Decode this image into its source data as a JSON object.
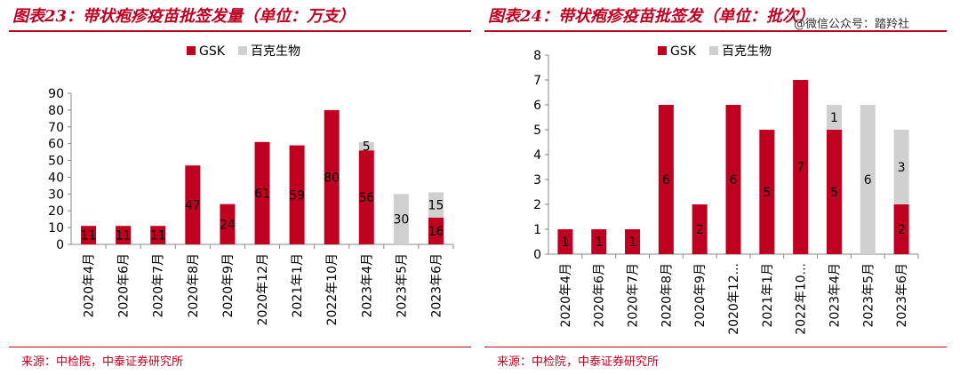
{
  "watermark": "@微信公众号：踏羚社",
  "colors": {
    "gsk": "#c00020",
    "baike": "#d0d0d0",
    "accent": "#c00020"
  },
  "chart_data": [
    {
      "type": "bar",
      "stacked": true,
      "title": "图表23：带状疱疹疫苗批签发量（单位：万支）",
      "source": "来源：中检院，中泰证券研究所",
      "legend_position": "top-center",
      "categories": [
        "2020年4月",
        "2020年6月",
        "2020年7月",
        "2020年8月",
        "2020年9月",
        "2020年12月",
        "2021年1月",
        "2022年10月",
        "2023年4月",
        "2023年5月",
        "2023年6月"
      ],
      "series": [
        {
          "name": "GSK",
          "values": [
            11,
            11,
            11,
            47,
            24,
            61,
            59,
            80,
            56,
            0,
            16
          ]
        },
        {
          "name": "百克生物",
          "values": [
            null,
            null,
            null,
            null,
            null,
            null,
            null,
            null,
            5,
            30,
            15
          ]
        }
      ],
      "ylim": [
        0,
        90
      ],
      "yticks": [
        0,
        10,
        20,
        30,
        40,
        50,
        60,
        70,
        80,
        90
      ]
    },
    {
      "type": "bar",
      "stacked": true,
      "title": "图表24：带状疱疹疫苗批签发（单位：批次）",
      "source": "来源：中检院，中泰证券研究所",
      "legend_position": "top-center",
      "categories": [
        "2020年4月",
        "2020年6月",
        "2020年7月",
        "2020年8月",
        "2020年9月",
        "2020年12...",
        "2021年1月",
        "2022年10...",
        "2023年4月",
        "2023年5月",
        "2023年6月"
      ],
      "series": [
        {
          "name": "GSK",
          "values": [
            1,
            1,
            1,
            6,
            2,
            6,
            5,
            7,
            5,
            null,
            2
          ]
        },
        {
          "name": "百克生物",
          "values": [
            null,
            null,
            null,
            null,
            null,
            null,
            null,
            null,
            1,
            6,
            3
          ]
        }
      ],
      "ylim": [
        0,
        8
      ],
      "yticks": [
        0,
        1,
        2,
        3,
        4,
        5,
        6,
        7,
        8
      ]
    }
  ]
}
